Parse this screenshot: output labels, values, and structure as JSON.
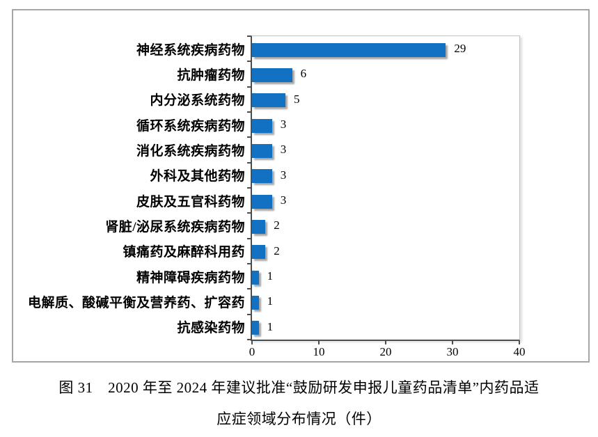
{
  "caption": {
    "line1": "图 31　2020 年至 2024 年建议批准“鼓励研发申报儿童药品清单”内药品适",
    "line2": "应症领域分布情况（件）"
  },
  "chart_data": {
    "type": "bar",
    "orientation": "horizontal",
    "categories": [
      "神经系统疾病药物",
      "抗肿瘤药物",
      "内分泌系统药物",
      "循环系统疾病药物",
      "消化系统疾病药物",
      "外科及其他药物",
      "皮肤及五官科药物",
      "肾脏/泌尿系统疾病药物",
      "镇痛药及麻醉科用药",
      "精神障碍疾病药物",
      "电解质、酸碱平衡及营养药、扩容药",
      "抗感染药物"
    ],
    "values": [
      29,
      6,
      5,
      3,
      3,
      3,
      3,
      2,
      2,
      1,
      1,
      1
    ],
    "data_labels_visible": true,
    "x_tick_labels": [
      "0",
      "10",
      "20",
      "30",
      "40"
    ],
    "x_tick_values": [
      0,
      10,
      20,
      30,
      40
    ],
    "xlim": [
      0,
      40
    ],
    "xlabel": "",
    "ylabel": "",
    "grid": false,
    "legend": "none",
    "bar_color": "#1271c2",
    "axis_color": "#4d4d4d",
    "plot_border_color": "#c3c3c3",
    "frame_border_color": "#a6a6a6"
  }
}
